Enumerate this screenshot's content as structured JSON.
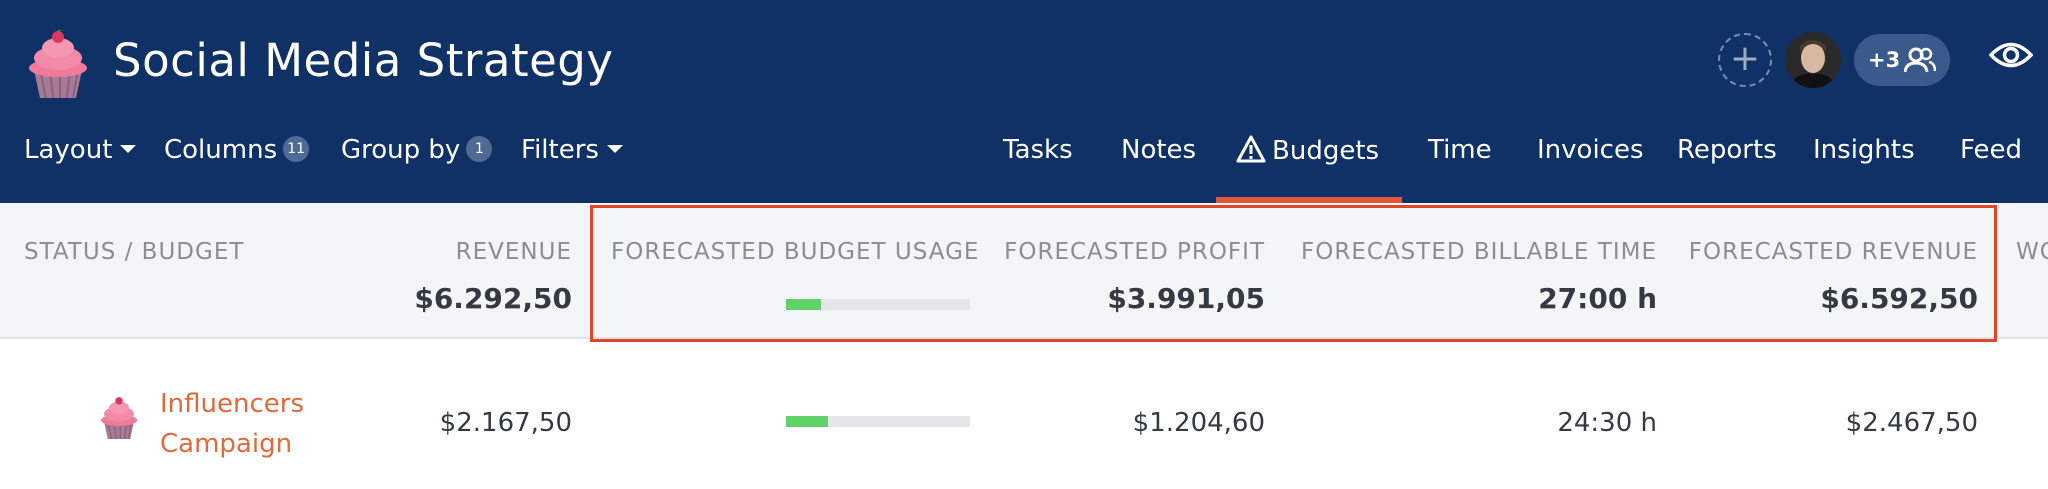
{
  "app": {
    "title": "Social Media Strategy",
    "logo_icon": "cupcake-icon",
    "members_more": "+3"
  },
  "toolbar": {
    "layout": "Layout",
    "columns": "Columns",
    "columns_count": "11",
    "group_by": "Group by",
    "group_by_count": "1",
    "filters": "Filters"
  },
  "tabs": [
    {
      "label": "Tasks"
    },
    {
      "label": "Notes"
    },
    {
      "label": "Budgets",
      "active": true,
      "icon": "warning-triangle-icon"
    },
    {
      "label": "Time"
    },
    {
      "label": "Invoices"
    },
    {
      "label": "Reports"
    },
    {
      "label": "Insights"
    },
    {
      "label": "Feed"
    }
  ],
  "columns": {
    "status": "STATUS / BUDGET",
    "revenue": "REVENUE",
    "revenue_total": "$6.292,50",
    "fbu": "FORECASTED BUDGET USAGE",
    "fbu_fraction": 0.19,
    "fprofit": "FORECASTED PROFIT",
    "fprofit_total": "$3.991,05",
    "fbt": "FORECASTED BILLABLE TIME",
    "fbt_total": "27:00 h",
    "frev": "FORECASTED REVENUE",
    "frev_total": "$6.592,50",
    "next_partial": "WO"
  },
  "rows": [
    {
      "name_line1": "Influencers",
      "name_line2": "Campaign",
      "revenue": "$2.167,50",
      "budget_usage_fraction": 0.23,
      "profit": "$1.204,60",
      "billable_time": "24:30 h",
      "forecast_revenue": "$2.467,50"
    }
  ],
  "colors": {
    "header_bg": "#0f3166",
    "accent": "#e0573a",
    "progress": "#5fd36a",
    "highlight": "#e0462a"
  }
}
